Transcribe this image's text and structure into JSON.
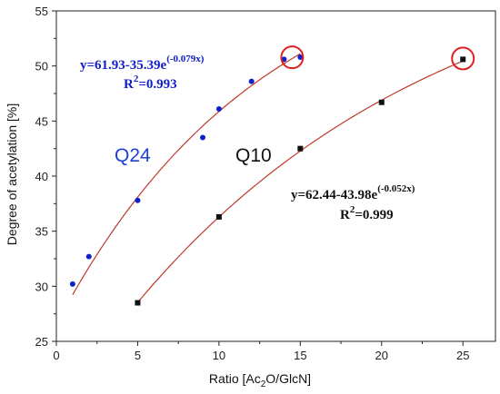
{
  "chart_data": {
    "type": "scatter",
    "title": "",
    "xlabel_main": "Ratio [Ac",
    "xlabel_sub1": "2",
    "xlabel_mid": "O/GlcN]",
    "ylabel": "Degree of acetylation [%]",
    "xlim": [
      0,
      27
    ],
    "ylim": [
      25,
      55
    ],
    "x_ticks": [
      "0",
      "5",
      "10",
      "15",
      "20",
      "25"
    ],
    "y_ticks": [
      "25",
      "30",
      "35",
      "40",
      "45",
      "50",
      "55"
    ],
    "grid": false,
    "series": [
      {
        "name": "Q24",
        "marker": "circle",
        "color": "#1020c8",
        "x": [
          1,
          2,
          5,
          9,
          10,
          12,
          14,
          15
        ],
        "y": [
          30.2,
          32.7,
          37.8,
          43.5,
          46.1,
          48.6,
          50.6,
          50.8
        ],
        "fit": {
          "a": 61.93,
          "b": 35.39,
          "k": 0.079,
          "x_from": 1,
          "x_to": 15
        },
        "equation_main": "y=61.93-35.39e",
        "equation_exp": "(-0.079x)",
        "r2_label": "R",
        "r2_exp": "2",
        "r2_value": "=0.993"
      },
      {
        "name": "Q10",
        "marker": "square",
        "color": "#111111",
        "x": [
          5,
          10,
          15,
          20,
          25
        ],
        "y": [
          28.5,
          36.3,
          42.5,
          46.7,
          50.6
        ],
        "fit": {
          "a": 62.44,
          "b": 43.98,
          "k": 0.052,
          "x_from": 5,
          "x_to": 25
        },
        "equation_main": "y=62.44-43.98e",
        "equation_exp": "(-0.052x)",
        "r2_label": "R",
        "r2_exp": "2",
        "r2_value": "=0.999"
      }
    ],
    "fit_color": "#c0392b",
    "highlight_color": "#e02020",
    "highlights": [
      {
        "x": 14.5,
        "y": 50.7
      },
      {
        "x": 25,
        "y": 50.6
      }
    ]
  }
}
